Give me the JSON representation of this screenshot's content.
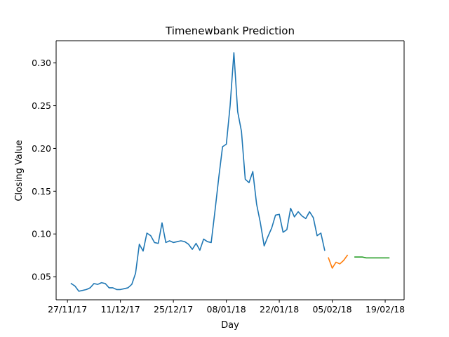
{
  "chart_data": {
    "type": "line",
    "title": "Timenewbank Prediction",
    "xlabel": "Day",
    "ylabel": "Closing Value",
    "x_axis_type": "date",
    "xlim": [
      "2017-11-24",
      "2018-02-24"
    ],
    "ylim": [
      0.023,
      0.326
    ],
    "x_ticks": [
      {
        "date": "2017-11-27",
        "label": "27/11/17"
      },
      {
        "date": "2017-12-11",
        "label": "11/12/17"
      },
      {
        "date": "2017-12-25",
        "label": "25/12/17"
      },
      {
        "date": "2018-01-08",
        "label": "08/01/18"
      },
      {
        "date": "2018-01-22",
        "label": "22/01/18"
      },
      {
        "date": "2018-02-05",
        "label": "05/02/18"
      },
      {
        "date": "2018-02-19",
        "label": "19/02/18"
      }
    ],
    "y_ticks": [
      {
        "value": 0.05,
        "label": "0.05"
      },
      {
        "value": 0.1,
        "label": "0.10"
      },
      {
        "value": 0.15,
        "label": "0.15"
      },
      {
        "value": 0.2,
        "label": "0.20"
      },
      {
        "value": 0.25,
        "label": "0.25"
      },
      {
        "value": 0.3,
        "label": "0.30"
      }
    ],
    "grid": false,
    "legend": false,
    "series": [
      {
        "color": "#1f77b4",
        "points": [
          [
            "2017-11-28",
            0.042
          ],
          [
            "2017-11-29",
            0.039
          ],
          [
            "2017-11-30",
            0.033
          ],
          [
            "2017-12-01",
            0.034
          ],
          [
            "2017-12-02",
            0.035
          ],
          [
            "2017-12-03",
            0.037
          ],
          [
            "2017-12-04",
            0.042
          ],
          [
            "2017-12-05",
            0.041
          ],
          [
            "2017-12-06",
            0.043
          ],
          [
            "2017-12-07",
            0.042
          ],
          [
            "2017-12-08",
            0.037
          ],
          [
            "2017-12-09",
            0.037
          ],
          [
            "2017-12-10",
            0.035
          ],
          [
            "2017-12-11",
            0.035
          ],
          [
            "2017-12-12",
            0.036
          ],
          [
            "2017-12-13",
            0.037
          ],
          [
            "2017-12-14",
            0.041
          ],
          [
            "2017-12-15",
            0.054
          ],
          [
            "2017-12-16",
            0.088
          ],
          [
            "2017-12-17",
            0.08
          ],
          [
            "2017-12-18",
            0.101
          ],
          [
            "2017-12-19",
            0.098
          ],
          [
            "2017-12-20",
            0.09
          ],
          [
            "2017-12-21",
            0.089
          ],
          [
            "2017-12-22",
            0.113
          ],
          [
            "2017-12-23",
            0.09
          ],
          [
            "2017-12-24",
            0.092
          ],
          [
            "2017-12-25",
            0.09
          ],
          [
            "2017-12-26",
            0.091
          ],
          [
            "2017-12-27",
            0.092
          ],
          [
            "2017-12-28",
            0.091
          ],
          [
            "2017-12-29",
            0.088
          ],
          [
            "2017-12-30",
            0.082
          ],
          [
            "2017-12-31",
            0.089
          ],
          [
            "2018-01-01",
            0.081
          ],
          [
            "2018-01-02",
            0.094
          ],
          [
            "2018-01-03",
            0.091
          ],
          [
            "2018-01-04",
            0.09
          ],
          [
            "2018-01-05",
            0.127
          ],
          [
            "2018-01-06",
            0.166
          ],
          [
            "2018-01-07",
            0.202
          ],
          [
            "2018-01-08",
            0.205
          ],
          [
            "2018-01-09",
            0.25
          ],
          [
            "2018-01-10",
            0.312
          ],
          [
            "2018-01-11",
            0.243
          ],
          [
            "2018-01-12",
            0.22
          ],
          [
            "2018-01-13",
            0.164
          ],
          [
            "2018-01-14",
            0.16
          ],
          [
            "2018-01-15",
            0.173
          ],
          [
            "2018-01-16",
            0.135
          ],
          [
            "2018-01-17",
            0.113
          ],
          [
            "2018-01-18",
            0.086
          ],
          [
            "2018-01-19",
            0.097
          ],
          [
            "2018-01-20",
            0.107
          ],
          [
            "2018-01-21",
            0.122
          ],
          [
            "2018-01-22",
            0.123
          ],
          [
            "2018-01-23",
            0.102
          ],
          [
            "2018-01-24",
            0.105
          ],
          [
            "2018-01-25",
            0.13
          ],
          [
            "2018-01-26",
            0.12
          ],
          [
            "2018-01-27",
            0.126
          ],
          [
            "2018-01-28",
            0.121
          ],
          [
            "2018-01-29",
            0.118
          ],
          [
            "2018-01-30",
            0.126
          ],
          [
            "2018-01-31",
            0.119
          ],
          [
            "2018-02-01",
            0.098
          ],
          [
            "2018-02-02",
            0.101
          ],
          [
            "2018-02-03",
            0.081
          ]
        ]
      },
      {
        "color": "#ff7f0e",
        "points": [
          [
            "2018-02-04",
            0.072
          ],
          [
            "2018-02-05",
            0.06
          ],
          [
            "2018-02-06",
            0.067
          ],
          [
            "2018-02-07",
            0.065
          ],
          [
            "2018-02-08",
            0.069
          ],
          [
            "2018-02-09",
            0.075
          ]
        ]
      },
      {
        "color": "#2ca02c",
        "points": [
          [
            "2018-02-11",
            0.073
          ],
          [
            "2018-02-12",
            0.073
          ],
          [
            "2018-02-13",
            0.073
          ],
          [
            "2018-02-14",
            0.072
          ],
          [
            "2018-02-15",
            0.072
          ],
          [
            "2018-02-16",
            0.072
          ],
          [
            "2018-02-17",
            0.072
          ],
          [
            "2018-02-18",
            0.072
          ],
          [
            "2018-02-19",
            0.072
          ],
          [
            "2018-02-20",
            0.072
          ]
        ]
      }
    ]
  }
}
